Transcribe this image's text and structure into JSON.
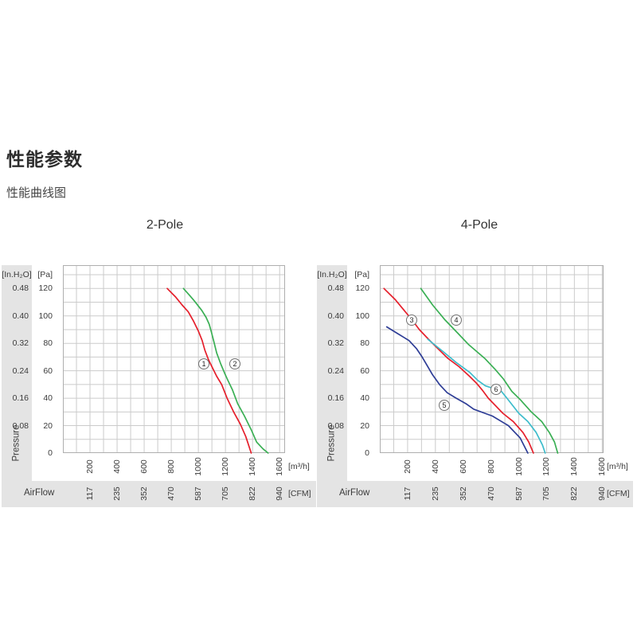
{
  "page": {
    "title": "性能参数",
    "subtitle": "性能曲线图"
  },
  "chart_data": [
    {
      "type": "line",
      "title": "2-Pole",
      "xlabel": "AirFlow",
      "ylabel": "Pressure",
      "x_unit_primary": "[m³/h]",
      "x_unit_secondary": "[CFM]",
      "y_unit_primary": "[Pa]",
      "y_unit_secondary": "[In.H₂O]",
      "x_ticks_m3h": [
        "200",
        "400",
        "600",
        "800",
        "1000",
        "1200",
        "1400",
        "1600"
      ],
      "x_ticks_cfm": [
        "117",
        "235",
        "352",
        "470",
        "587",
        "705",
        "822",
        "940"
      ],
      "y_ticks_pa": [
        "120",
        "100",
        "80",
        "60",
        "40",
        "20",
        "0"
      ],
      "y_ticks_inh2o": [
        "0.48",
        "0.40",
        "0.32",
        "0.24",
        "0.16",
        "0.08"
      ],
      "xlim": [
        0,
        1640
      ],
      "ylim": [
        0,
        137
      ],
      "grid": "minor 100 m3h / 10 Pa",
      "legend_position": "on-curve circled numbers",
      "series": [
        {
          "label": "1",
          "color": "#e51f2b",
          "points": [
            [
              770,
              120
            ],
            [
              830,
              114
            ],
            [
              880,
              108
            ],
            [
              925,
              103
            ],
            [
              965,
              96
            ],
            [
              1000,
              89
            ],
            [
              1028,
              82
            ],
            [
              1048,
              75
            ],
            [
              1075,
              68
            ],
            [
              1105,
              62
            ],
            [
              1135,
              56
            ],
            [
              1172,
              50
            ],
            [
              1212,
              40
            ],
            [
              1260,
              30
            ],
            [
              1310,
              21
            ],
            [
              1350,
              12
            ],
            [
              1390,
              0
            ]
          ]
        },
        {
          "label": "2",
          "color": "#3aaf54",
          "points": [
            [
              890,
              120
            ],
            [
              935,
              115
            ],
            [
              970,
              111
            ],
            [
              1025,
              104
            ],
            [
              1057,
              99
            ],
            [
              1080,
              94
            ],
            [
              1097,
              88
            ],
            [
              1115,
              81
            ],
            [
              1135,
              73
            ],
            [
              1165,
              65
            ],
            [
              1195,
              58
            ],
            [
              1218,
              53
            ],
            [
              1252,
              46
            ],
            [
              1290,
              36
            ],
            [
              1340,
              27
            ],
            [
              1390,
              17
            ],
            [
              1430,
              8
            ],
            [
              1478,
              3
            ],
            [
              1515,
              0
            ]
          ]
        }
      ]
    },
    {
      "type": "line",
      "title": "4-Pole",
      "xlabel": "AirFlow",
      "ylabel": "Pressure",
      "x_unit_primary": "[m³/h]",
      "x_unit_secondary": "[CFM]",
      "y_unit_primary": "[Pa]",
      "y_unit_secondary": "[In.H₂O]",
      "x_ticks_m3h": [
        "200",
        "400",
        "600",
        "800",
        "1000",
        "1200",
        "1400",
        "1600"
      ],
      "x_ticks_cfm": [
        "117",
        "235",
        "352",
        "470",
        "587",
        "705",
        "822",
        "940"
      ],
      "y_ticks_pa": [
        "120",
        "100",
        "80",
        "60",
        "40",
        "20",
        "0"
      ],
      "y_ticks_inh2o": [
        "0.48",
        "0.40",
        "0.32",
        "0.24",
        "0.16",
        "0.08"
      ],
      "xlim": [
        0,
        1610
      ],
      "ylim": [
        0,
        137
      ],
      "grid": "minor 100 m3h / 10 Pa",
      "legend_position": "on-curve circled numbers",
      "series": [
        {
          "label": "3",
          "color": "#e51f2b",
          "points": [
            [
              30,
              120
            ],
            [
              110,
              112
            ],
            [
              200,
              101
            ],
            [
              240,
              96
            ],
            [
              285,
              90
            ],
            [
              350,
              83
            ],
            [
              420,
              76
            ],
            [
              490,
              69
            ],
            [
              570,
              63
            ],
            [
              645,
              56
            ],
            [
              695,
              51
            ],
            [
              737,
              46
            ],
            [
              781,
              40
            ],
            [
              885,
              29
            ],
            [
              960,
              23
            ],
            [
              1030,
              15
            ],
            [
              1072,
              8
            ],
            [
              1105,
              0
            ]
          ]
        },
        {
          "label": "4",
          "color": "#3aaf54",
          "points": [
            [
              295,
              120
            ],
            [
              380,
              108
            ],
            [
              470,
              97
            ],
            [
              565,
              87
            ],
            [
              640,
              79
            ],
            [
              755,
              69
            ],
            [
              830,
              61
            ],
            [
              890,
              54
            ],
            [
              950,
              45
            ],
            [
              1010,
              39
            ],
            [
              1090,
              30
            ],
            [
              1165,
              23
            ],
            [
              1220,
              15
            ],
            [
              1257,
              8
            ],
            [
              1280,
              0
            ]
          ]
        },
        {
          "label": "5",
          "color": "#2e3d96",
          "points": [
            [
              50,
              92
            ],
            [
              130,
              87
            ],
            [
              210,
              82
            ],
            [
              265,
              76
            ],
            [
              305,
              70
            ],
            [
              340,
              64
            ],
            [
              380,
              57
            ],
            [
              430,
              50
            ],
            [
              485,
              44
            ],
            [
              550,
              40
            ],
            [
              620,
              36
            ],
            [
              676,
              32
            ],
            [
              810,
              27
            ],
            [
              925,
              20
            ],
            [
              1010,
              11
            ],
            [
              1065,
              0
            ]
          ]
        },
        {
          "label": "6",
          "color": "#3dbccb",
          "points": [
            [
              345,
              83
            ],
            [
              455,
              74
            ],
            [
              550,
              66
            ],
            [
              645,
              59
            ],
            [
              705,
              53
            ],
            [
              760,
              49
            ],
            [
              820,
              47
            ],
            [
              875,
              45
            ],
            [
              915,
              40
            ],
            [
              1000,
              29
            ],
            [
              1065,
              23
            ],
            [
              1125,
              15
            ],
            [
              1170,
              6
            ],
            [
              1190,
              0
            ]
          ]
        }
      ]
    }
  ],
  "style": {
    "grid_color": "#cbcbcb",
    "border_color": "#aeaeae",
    "band_color": "#e4e4e4",
    "text_color": "#3b3b3b"
  }
}
